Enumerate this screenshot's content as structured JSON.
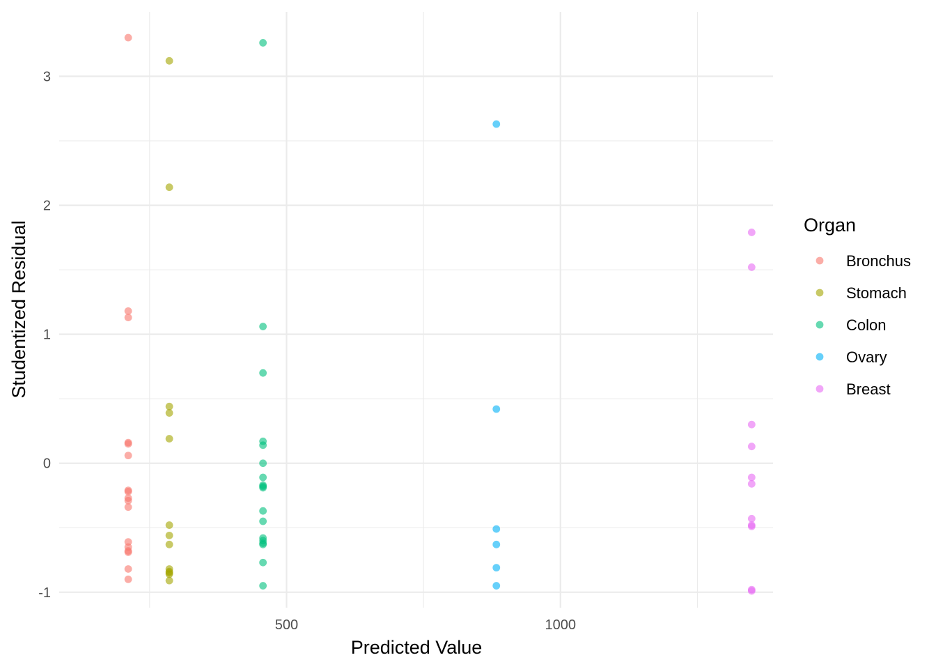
{
  "chart_data": {
    "type": "scatter",
    "title": "",
    "xlabel": "Predicted Value",
    "ylabel": "Studentized Residual",
    "xlim": [
      85,
      1388
    ],
    "ylim": [
      -1.12,
      3.5
    ],
    "x_ticks": [
      500,
      1000
    ],
    "x_tick_labels": [
      "500",
      "1000"
    ],
    "x_minor_ticks": [
      250,
      750,
      1250
    ],
    "y_ticks": [
      -1,
      0,
      1,
      2,
      3
    ],
    "y_tick_labels": [
      "-1",
      "0",
      "1",
      "2",
      "3"
    ],
    "y_minor_ticks": [
      -0.5,
      0.5,
      1.5,
      2.5
    ],
    "grid": true,
    "point_alpha": 0.6,
    "legend": {
      "title": "Organ",
      "placement": "right"
    },
    "series": [
      {
        "name": "Bronchus",
        "color": "#F8766D",
        "x": [
          211,
          211,
          211,
          211,
          211,
          211,
          211,
          211,
          211,
          211,
          211,
          211,
          211,
          211,
          211,
          211,
          211
        ],
        "y": [
          3.3,
          1.18,
          1.13,
          0.16,
          0.15,
          0.06,
          -0.21,
          -0.22,
          -0.27,
          -0.29,
          -0.34,
          -0.61,
          -0.65,
          -0.68,
          -0.69,
          -0.82,
          -0.9
        ]
      },
      {
        "name": "Stomach",
        "color": "#A3A500",
        "x": [
          286,
          286,
          286,
          286,
          286,
          286,
          286,
          286,
          286,
          286,
          286,
          286,
          286
        ],
        "y": [
          3.12,
          2.14,
          0.44,
          0.39,
          0.19,
          -0.48,
          -0.56,
          -0.63,
          -0.82,
          -0.84,
          -0.85,
          -0.86,
          -0.91
        ]
      },
      {
        "name": "Colon",
        "color": "#00BF7D",
        "x": [
          457,
          457,
          457,
          457,
          457,
          457,
          457,
          457,
          457,
          457,
          457,
          457,
          457,
          457,
          457,
          457,
          457,
          457
        ],
        "y": [
          3.26,
          1.06,
          0.7,
          0.17,
          0.14,
          0.0,
          -0.11,
          -0.17,
          -0.18,
          -0.19,
          -0.37,
          -0.45,
          -0.58,
          -0.6,
          -0.63,
          -0.77,
          -0.95,
          -0.62
        ]
      },
      {
        "name": "Ovary",
        "color": "#00B0F6",
        "x": [
          883,
          883,
          883,
          883,
          883,
          883
        ],
        "y": [
          2.63,
          0.42,
          -0.51,
          -0.63,
          -0.81,
          -0.95
        ]
      },
      {
        "name": "Breast",
        "color": "#E76BF3",
        "x": [
          1349,
          1349,
          1349,
          1349,
          1349,
          1349,
          1349,
          1349,
          1349,
          1349,
          1349
        ],
        "y": [
          1.79,
          1.52,
          0.3,
          0.13,
          -0.11,
          -0.16,
          -0.43,
          -0.48,
          -0.49,
          -0.98,
          -0.99
        ]
      }
    ]
  }
}
